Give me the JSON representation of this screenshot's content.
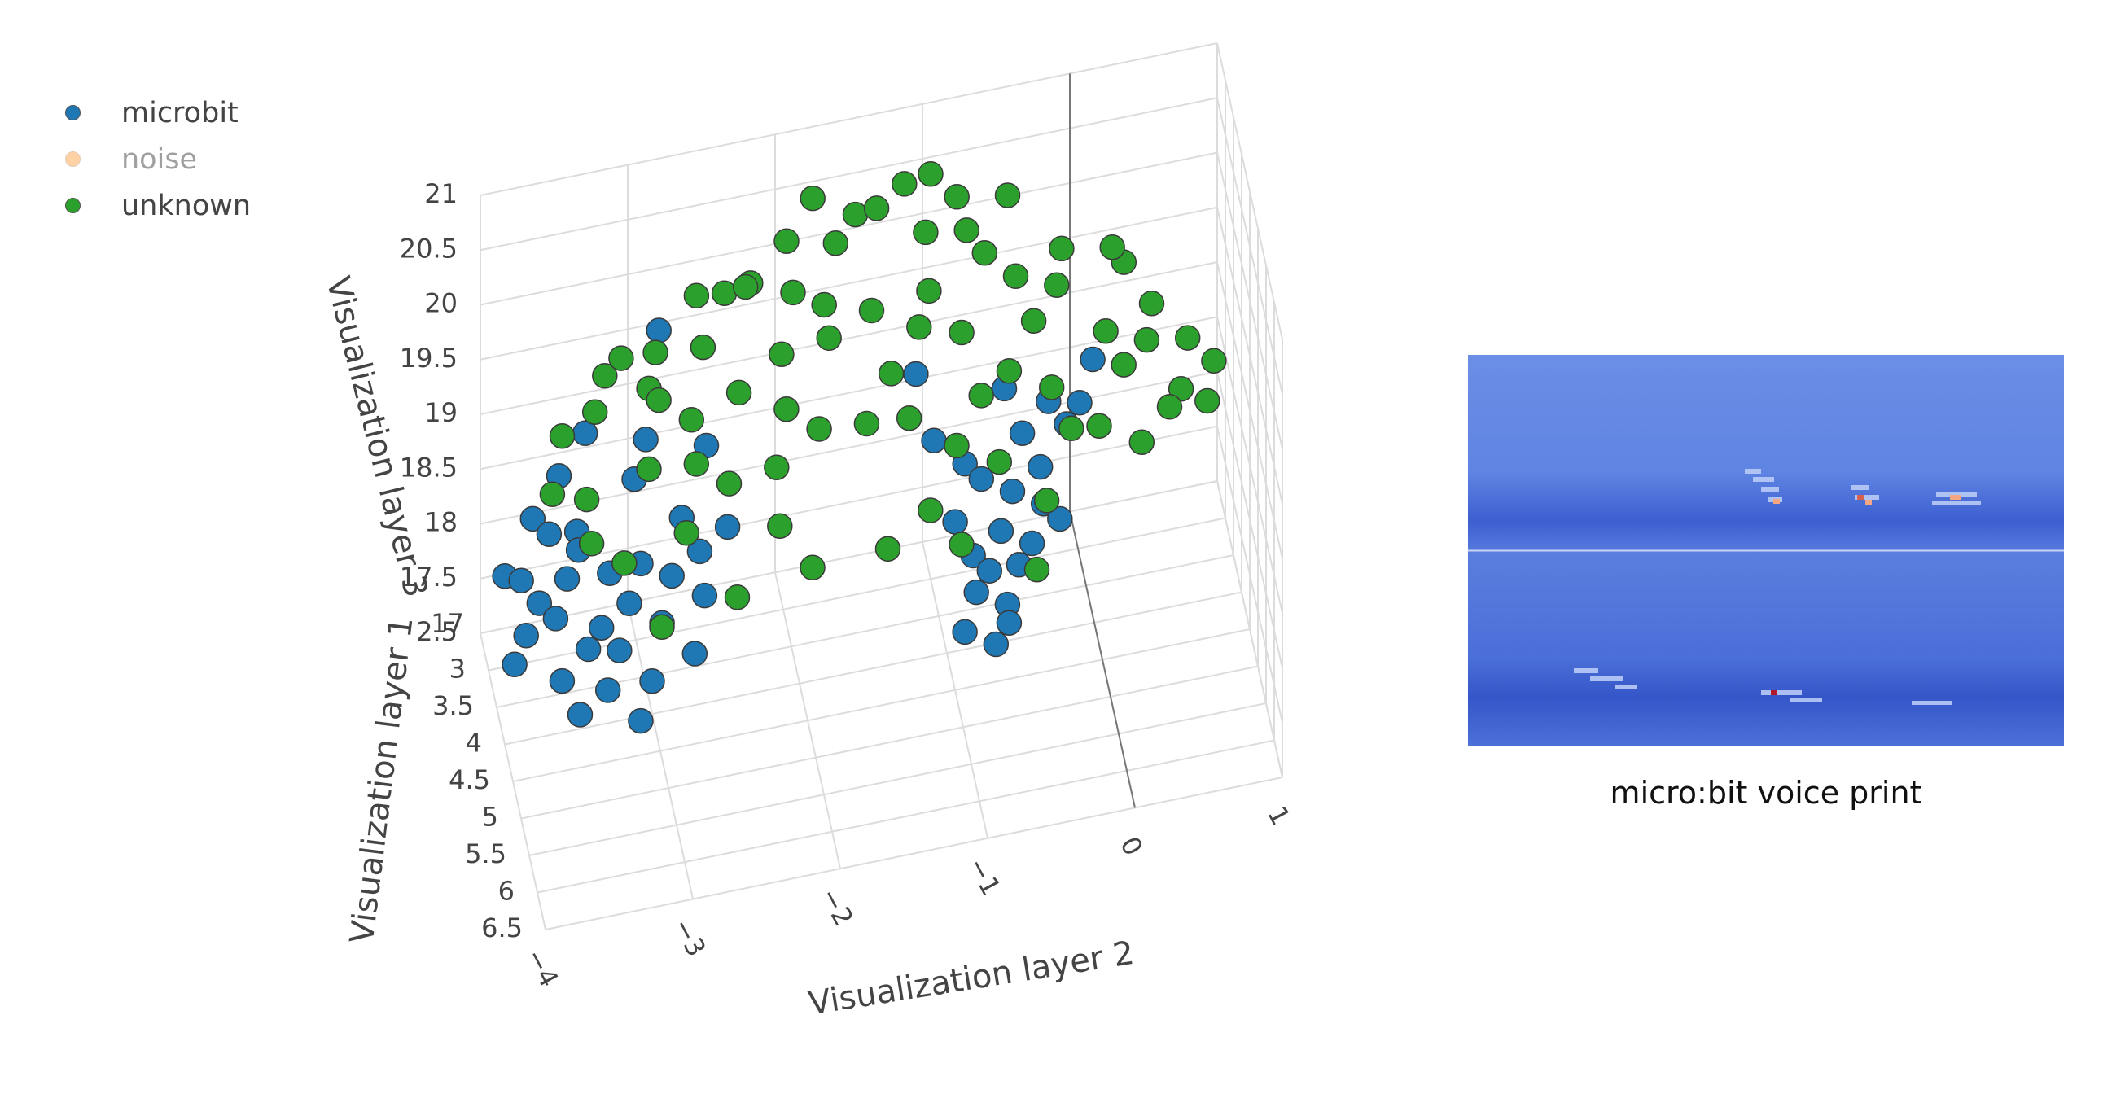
{
  "legend": {
    "items": [
      {
        "label": "microbit",
        "color": "#1f77b4",
        "hidden": false
      },
      {
        "label": "noise",
        "color": "#ffbb78",
        "hidden": true
      },
      {
        "label": "unknown",
        "color": "#2ca02c",
        "hidden": false
      }
    ]
  },
  "chart_data": [
    {
      "type": "scatter",
      "projection": "3d",
      "xlabel": "Visualization layer 2",
      "ylabel": "Visualization layer 1",
      "zlabel": "Visualization layer 3",
      "xlim": [
        -4,
        1
      ],
      "ylim": [
        2.5,
        6.5
      ],
      "zlim": [
        17,
        21
      ],
      "xticks": [
        "−4",
        "−3",
        "−2",
        "−1",
        "0",
        "1"
      ],
      "yticks": [
        "2.5",
        "3",
        "3.5",
        "4",
        "4.5",
        "5",
        "5.5",
        "6",
        "6.5"
      ],
      "zticks": [
        "17",
        "17.5",
        "18",
        "18.5",
        "19",
        "19.5",
        "20",
        "20.5",
        "21"
      ],
      "grid": true,
      "legend_position": "top-left",
      "series": [
        {
          "name": "microbit",
          "color": "#1f77b4",
          "cluster_shape": "two lower lobes",
          "points": [
            [
              -3.8,
              3.2,
              17.9
            ],
            [
              -3.7,
              3.4,
              17.8
            ],
            [
              -3.6,
              3.5,
              17.7
            ],
            [
              -3.5,
              3.3,
              17.9
            ],
            [
              -3.6,
              3.9,
              17.4
            ],
            [
              -3.4,
              3.1,
              18.0
            ],
            [
              -3.3,
              3.6,
              17.6
            ],
            [
              -3.2,
              3.2,
              17.8
            ],
            [
              -3.3,
              4.0,
              17.3
            ],
            [
              -3.1,
              3.5,
              17.7
            ],
            [
              -3.9,
              3.7,
              17.5
            ],
            [
              -3.5,
              4.1,
              17.2
            ],
            [
              -3.0,
              3.3,
              17.9
            ],
            [
              -3.2,
              3.8,
              17.5
            ],
            [
              -3.4,
              3.0,
              18.1
            ],
            [
              -2.8,
              3.4,
              17.8
            ],
            [
              -2.9,
              3.7,
              17.6
            ],
            [
              -2.6,
              3.3,
              17.9
            ],
            [
              -2.7,
              3.9,
              17.4
            ],
            [
              -3.1,
              4.2,
              17.1
            ],
            [
              -3.7,
              3.0,
              18.3
            ],
            [
              -3.6,
              3.1,
              18.2
            ],
            [
              -3.0,
              2.9,
              18.4
            ],
            [
              -2.7,
              3.1,
              18.1
            ],
            [
              -2.4,
              3.2,
              18.0
            ],
            [
              -3.5,
              2.8,
              18.5
            ],
            [
              -2.9,
              2.7,
              18.6
            ],
            [
              -3.3,
              2.6,
              18.7
            ],
            [
              -2.5,
              2.8,
              18.5
            ],
            [
              -2.8,
              2.6,
              19.5
            ],
            [
              -3.8,
              3.5,
              17.6
            ],
            [
              -3.9,
              3.1,
              17.9
            ],
            [
              -3.4,
              3.7,
              17.5
            ],
            [
              -3.0,
              4.0,
              17.3
            ],
            [
              -2.6,
              3.6,
              17.7
            ],
            [
              -0.9,
              3.6,
              17.9
            ],
            [
              -0.8,
              3.8,
              17.7
            ],
            [
              -0.7,
              3.4,
              18.1
            ],
            [
              -0.8,
              4.0,
              17.5
            ],
            [
              -0.6,
              3.7,
              17.8
            ],
            [
              -0.9,
              4.2,
              17.3
            ],
            [
              -0.7,
              3.9,
              17.6
            ],
            [
              -0.5,
              3.5,
              18.0
            ],
            [
              -0.6,
              4.1,
              17.4
            ],
            [
              -0.8,
              3.3,
              18.2
            ],
            [
              -0.4,
              3.2,
              18.3
            ],
            [
              -0.5,
              3.9,
              17.6
            ],
            [
              -0.3,
              3.6,
              17.9
            ],
            [
              -0.7,
              4.3,
              17.2
            ],
            [
              -0.4,
              3.8,
              17.7
            ],
            [
              -0.2,
              3.0,
              18.4
            ],
            [
              -0.3,
              3.4,
              18.1
            ],
            [
              -0.1,
              3.2,
              18.3
            ],
            [
              -0.2,
              3.7,
              17.8
            ],
            [
              0.0,
              3.1,
              18.4
            ],
            [
              -1.0,
              3.2,
              18.4
            ],
            [
              -0.5,
              3.0,
              18.6
            ],
            [
              0.1,
              3.0,
              18.7
            ],
            [
              -1.1,
              3.0,
              18.9
            ],
            [
              -0.6,
              4.2,
              17.3
            ]
          ]
        },
        {
          "name": "unknown",
          "color": "#2ca02c",
          "cluster_shape": "upper dome",
          "points": [
            [
              -3.5,
              3.0,
              19.0
            ],
            [
              -3.3,
              3.2,
              19.3
            ],
            [
              -3.1,
              3.0,
              19.6
            ],
            [
              -2.9,
              3.3,
              19.8
            ],
            [
              -2.6,
              3.1,
              20.1
            ],
            [
              -2.3,
              3.4,
              20.3
            ],
            [
              -2.0,
              3.2,
              20.5
            ],
            [
              -1.7,
              3.5,
              20.6
            ],
            [
              -1.4,
              3.3,
              20.7
            ],
            [
              -1.1,
              3.6,
              20.6
            ],
            [
              -0.8,
              3.4,
              20.4
            ],
            [
              -0.5,
              3.7,
              20.1
            ],
            [
              -0.2,
              3.5,
              19.8
            ],
            [
              0.1,
              3.8,
              19.5
            ],
            [
              0.4,
              3.6,
              19.2
            ],
            [
              0.6,
              3.9,
              18.9
            ],
            [
              0.8,
              3.7,
              18.6
            ],
            [
              -3.4,
              3.6,
              18.8
            ],
            [
              -3.0,
              3.8,
              19.1
            ],
            [
              -2.7,
              3.7,
              19.4
            ],
            [
              -2.4,
              3.9,
              19.7
            ],
            [
              -2.1,
              3.8,
              19.9
            ],
            [
              -1.8,
              4.0,
              20.1
            ],
            [
              -1.5,
              3.9,
              20.2
            ],
            [
              -1.2,
              4.1,
              20.1
            ],
            [
              -0.9,
              4.0,
              19.9
            ],
            [
              -0.6,
              4.2,
              19.6
            ],
            [
              -0.3,
              4.1,
              19.3
            ],
            [
              0.0,
              4.3,
              19.0
            ],
            [
              0.3,
              4.2,
              18.7
            ],
            [
              -3.2,
              4.1,
              18.5
            ],
            [
              -2.8,
              4.3,
              18.8
            ],
            [
              -2.5,
              4.2,
              19.1
            ],
            [
              -2.2,
              4.4,
              19.3
            ],
            [
              -1.9,
              4.3,
              19.5
            ],
            [
              -1.6,
              4.5,
              19.6
            ],
            [
              -1.3,
              4.4,
              19.5
            ],
            [
              -1.0,
              4.6,
              19.3
            ],
            [
              -0.7,
              4.5,
              19.0
            ],
            [
              -0.4,
              4.7,
              18.7
            ],
            [
              -3.6,
              3.3,
              18.7
            ],
            [
              -2.9,
              2.9,
              19.2
            ],
            [
              -2.2,
              2.8,
              19.9
            ],
            [
              -1.5,
              2.9,
              20.4
            ],
            [
              -0.8,
              2.8,
              20.3
            ],
            [
              -0.1,
              2.9,
              19.7
            ],
            [
              0.5,
              3.0,
              19.1
            ],
            [
              0.9,
              3.2,
              18.6
            ],
            [
              -3.0,
              4.6,
              18.2
            ],
            [
              -2.5,
              4.7,
              18.4
            ],
            [
              -2.0,
              4.8,
              18.6
            ],
            [
              -1.5,
              4.9,
              18.7
            ],
            [
              -1.0,
              4.9,
              18.6
            ],
            [
              -0.5,
              5.0,
              18.3
            ],
            [
              -2.0,
              3.6,
              20.3
            ],
            [
              -1.2,
              3.2,
              20.8
            ],
            [
              -0.5,
              3.2,
              20.5
            ],
            [
              0.2,
              3.3,
              19.9
            ],
            [
              -2.6,
              3.5,
              19.9
            ],
            [
              -1.8,
              3.0,
              20.7
            ],
            [
              -3.2,
              2.9,
              19.4
            ],
            [
              -2.4,
              3.0,
              20.0
            ],
            [
              -1.0,
              3.0,
              20.7
            ],
            [
              0.3,
              3.1,
              19.6
            ],
            [
              0.7,
              3.4,
              19.0
            ],
            [
              -3.4,
              3.9,
              18.6
            ],
            [
              -2.1,
              4.1,
              19.6
            ],
            [
              -1.4,
              4.2,
              19.8
            ],
            [
              -0.8,
              4.3,
              19.5
            ],
            [
              -0.2,
              4.4,
              19.1
            ],
            [
              -2.7,
              4.0,
              19.2
            ],
            [
              -1.1,
              3.8,
              20.2
            ],
            [
              -0.4,
              3.9,
              19.8
            ],
            [
              0.2,
              4.0,
              19.3
            ],
            [
              0.5,
              4.1,
              18.9
            ],
            [
              -1.2,
              4.8,
              18.9
            ],
            [
              -2.2,
              4.6,
              18.9
            ],
            [
              -1.8,
              3.7,
              20.2
            ],
            [
              -0.7,
              3.6,
              20.3
            ],
            [
              -2.9,
              3.5,
              19.5
            ]
          ]
        }
      ]
    }
  ],
  "voice_print": {
    "caption": "micro:bit voice print"
  }
}
